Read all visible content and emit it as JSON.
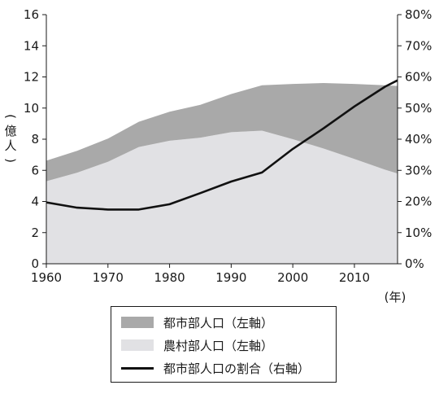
{
  "chart_data": {
    "type": "area",
    "title": "",
    "xlabel": "(年)",
    "ylabel": "(億人)",
    "y2label": "",
    "xlim": [
      1960,
      2017
    ],
    "x_ticks": [
      1960,
      1970,
      1980,
      1990,
      2000,
      2010
    ],
    "ylim": [
      0,
      16
    ],
    "y_ticks": [
      0,
      2,
      4,
      6,
      8,
      10,
      12,
      14,
      16
    ],
    "y2lim": [
      0,
      80
    ],
    "y2_ticks": [
      "0%",
      "10%",
      "20%",
      "30%",
      "40%",
      "50%",
      "60%",
      "70%",
      "80%"
    ],
    "grid": false,
    "x": [
      1960,
      1965,
      1970,
      1975,
      1980,
      1985,
      1990,
      1995,
      2000,
      2005,
      2010,
      2015,
      2017
    ],
    "series": [
      {
        "name": "都市部人口（左軸）",
        "axis": "left",
        "kind": "stacked-area",
        "color": "#a9a9a9",
        "values": [
          1.32,
          1.4,
          1.49,
          1.62,
          1.86,
          2.11,
          2.45,
          2.91,
          3.55,
          4.21,
          4.82,
          5.42,
          5.62
        ]
      },
      {
        "name": "農村部人口（左軸）",
        "axis": "left",
        "kind": "stacked-area",
        "color": "#e1e1e4",
        "values": [
          5.3,
          5.85,
          6.55,
          7.5,
          7.9,
          8.1,
          8.45,
          8.55,
          8.0,
          7.4,
          6.73,
          6.04,
          5.8
        ]
      },
      {
        "name": "都市部人口の割合（右軸）",
        "axis": "right",
        "kind": "line",
        "color": "#111111",
        "values": [
          19.7,
          18.0,
          17.4,
          17.4,
          19.1,
          22.7,
          26.4,
          29.3,
          36.9,
          43.5,
          50.5,
          56.9,
          58.9
        ]
      }
    ],
    "legend_position": "bottom"
  }
}
